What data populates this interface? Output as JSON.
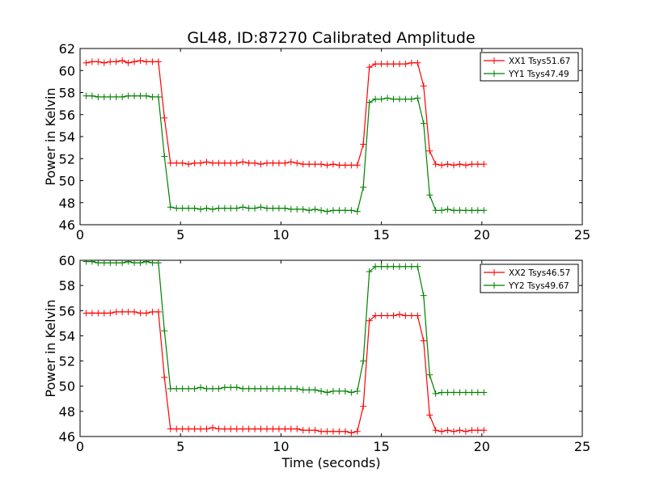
{
  "chart_data": [
    {
      "type": "line",
      "title": "GL48, ID:87270 Calibrated Amplitude",
      "xlabel": "",
      "ylabel": "Power in Kelvin",
      "xlim": [
        0,
        25
      ],
      "ylim": [
        46,
        62
      ],
      "xticks": [
        "0",
        "5",
        "10",
        "15",
        "20",
        "25"
      ],
      "yticks": [
        "46",
        "48",
        "50",
        "52",
        "54",
        "56",
        "58",
        "60",
        "62"
      ],
      "legend_position": "top-right",
      "grid": false,
      "series": [
        {
          "name": "XX1 Tsys51.67",
          "color": "#ff0000",
          "x": [
            0.3,
            0.6,
            0.9,
            1.2,
            1.5,
            1.8,
            2.1,
            2.4,
            2.7,
            3.0,
            3.3,
            3.6,
            3.9,
            4.2,
            4.5,
            4.8,
            5.1,
            5.4,
            5.7,
            6.0,
            6.3,
            6.6,
            6.9,
            7.2,
            7.5,
            7.8,
            8.1,
            8.4,
            8.7,
            9.0,
            9.3,
            9.6,
            9.9,
            10.2,
            10.5,
            10.8,
            11.1,
            11.4,
            11.7,
            12.0,
            12.3,
            12.6,
            12.9,
            13.2,
            13.5,
            13.8,
            14.1,
            14.4,
            14.7,
            15.0,
            15.3,
            15.6,
            15.9,
            16.2,
            16.5,
            16.8,
            17.1,
            17.4,
            17.7,
            18.0,
            18.3,
            18.6,
            18.9,
            19.2,
            19.5,
            19.8,
            20.1
          ],
          "y": [
            60.7,
            60.8,
            60.8,
            60.7,
            60.8,
            60.8,
            60.9,
            60.7,
            60.8,
            60.9,
            60.8,
            60.8,
            60.8,
            55.7,
            51.6,
            51.6,
            51.6,
            51.5,
            51.6,
            51.6,
            51.7,
            51.6,
            51.6,
            51.6,
            51.6,
            51.6,
            51.7,
            51.6,
            51.6,
            51.5,
            51.6,
            51.6,
            51.6,
            51.6,
            51.7,
            51.6,
            51.5,
            51.5,
            51.5,
            51.5,
            51.4,
            51.5,
            51.4,
            51.4,
            51.4,
            51.4,
            53.3,
            60.3,
            60.6,
            60.6,
            60.6,
            60.6,
            60.6,
            60.6,
            60.7,
            60.7,
            58.6,
            52.7,
            51.5,
            51.4,
            51.5,
            51.4,
            51.5,
            51.4,
            51.5,
            51.5,
            51.5
          ]
        },
        {
          "name": "YY1 Tsys47.49",
          "color": "#008000",
          "x": [
            0.3,
            0.6,
            0.9,
            1.2,
            1.5,
            1.8,
            2.1,
            2.4,
            2.7,
            3.0,
            3.3,
            3.6,
            3.9,
            4.2,
            4.5,
            4.8,
            5.1,
            5.4,
            5.7,
            6.0,
            6.3,
            6.6,
            6.9,
            7.2,
            7.5,
            7.8,
            8.1,
            8.4,
            8.7,
            9.0,
            9.3,
            9.6,
            9.9,
            10.2,
            10.5,
            10.8,
            11.1,
            11.4,
            11.7,
            12.0,
            12.3,
            12.6,
            12.9,
            13.2,
            13.5,
            13.8,
            14.1,
            14.4,
            14.7,
            15.0,
            15.3,
            15.6,
            15.9,
            16.2,
            16.5,
            16.8,
            17.1,
            17.4,
            17.7,
            18.0,
            18.3,
            18.6,
            18.9,
            19.2,
            19.5,
            19.8,
            20.1
          ],
          "y": [
            57.7,
            57.7,
            57.6,
            57.6,
            57.6,
            57.6,
            57.6,
            57.7,
            57.7,
            57.7,
            57.7,
            57.6,
            57.6,
            52.2,
            47.6,
            47.5,
            47.5,
            47.5,
            47.5,
            47.4,
            47.5,
            47.4,
            47.5,
            47.5,
            47.5,
            47.5,
            47.6,
            47.5,
            47.5,
            47.6,
            47.5,
            47.5,
            47.5,
            47.5,
            47.4,
            47.4,
            47.4,
            47.3,
            47.4,
            47.3,
            47.2,
            47.3,
            47.3,
            47.3,
            47.3,
            47.2,
            49.4,
            57.1,
            57.4,
            57.4,
            57.5,
            57.4,
            57.4,
            57.4,
            57.4,
            57.5,
            55.2,
            48.7,
            47.3,
            47.3,
            47.4,
            47.3,
            47.3,
            47.3,
            47.3,
            47.3,
            47.3
          ]
        }
      ]
    },
    {
      "type": "line",
      "title": "",
      "xlabel": "Time (seconds)",
      "ylabel": "Power in Kelvin",
      "xlim": [
        0,
        25
      ],
      "ylim": [
        46,
        60
      ],
      "xticks": [
        "0",
        "5",
        "10",
        "15",
        "20",
        "25"
      ],
      "yticks": [
        "46",
        "48",
        "50",
        "52",
        "54",
        "56",
        "58",
        "60"
      ],
      "legend_position": "top-right",
      "grid": false,
      "series": [
        {
          "name": "XX2 Tsys46.57",
          "color": "#ff0000",
          "x": [
            0.3,
            0.6,
            0.9,
            1.2,
            1.5,
            1.8,
            2.1,
            2.4,
            2.7,
            3.0,
            3.3,
            3.6,
            3.9,
            4.2,
            4.5,
            4.8,
            5.1,
            5.4,
            5.7,
            6.0,
            6.3,
            6.6,
            6.9,
            7.2,
            7.5,
            7.8,
            8.1,
            8.4,
            8.7,
            9.0,
            9.3,
            9.6,
            9.9,
            10.2,
            10.5,
            10.8,
            11.1,
            11.4,
            11.7,
            12.0,
            12.3,
            12.6,
            12.9,
            13.2,
            13.5,
            13.8,
            14.1,
            14.4,
            14.7,
            15.0,
            15.3,
            15.6,
            15.9,
            16.2,
            16.5,
            16.8,
            17.1,
            17.4,
            17.7,
            18.0,
            18.3,
            18.6,
            18.9,
            19.2,
            19.5,
            19.8,
            20.1
          ],
          "y": [
            55.8,
            55.8,
            55.8,
            55.8,
            55.8,
            55.9,
            55.9,
            55.9,
            55.9,
            55.8,
            55.8,
            55.9,
            55.9,
            50.7,
            46.6,
            46.6,
            46.6,
            46.6,
            46.6,
            46.6,
            46.6,
            46.7,
            46.6,
            46.6,
            46.6,
            46.6,
            46.6,
            46.6,
            46.6,
            46.6,
            46.6,
            46.6,
            46.6,
            46.6,
            46.6,
            46.6,
            46.5,
            46.5,
            46.5,
            46.4,
            46.4,
            46.4,
            46.4,
            46.4,
            46.3,
            46.4,
            48.4,
            55.2,
            55.6,
            55.6,
            55.6,
            55.6,
            55.7,
            55.6,
            55.6,
            55.6,
            53.6,
            47.7,
            46.5,
            46.4,
            46.5,
            46.4,
            46.5,
            46.4,
            46.5,
            46.5,
            46.5
          ]
        },
        {
          "name": "YY2 Tsys49.67",
          "color": "#008000",
          "x": [
            0.3,
            0.6,
            0.9,
            1.2,
            1.5,
            1.8,
            2.1,
            2.4,
            2.7,
            3.0,
            3.3,
            3.6,
            3.9,
            4.2,
            4.5,
            4.8,
            5.1,
            5.4,
            5.7,
            6.0,
            6.3,
            6.6,
            6.9,
            7.2,
            7.5,
            7.8,
            8.1,
            8.4,
            8.7,
            9.0,
            9.3,
            9.6,
            9.9,
            10.2,
            10.5,
            10.8,
            11.1,
            11.4,
            11.7,
            12.0,
            12.3,
            12.6,
            12.9,
            13.2,
            13.5,
            13.8,
            14.1,
            14.4,
            14.7,
            15.0,
            15.3,
            15.6,
            15.9,
            16.2,
            16.5,
            16.8,
            17.1,
            17.4,
            17.7,
            18.0,
            18.3,
            18.6,
            18.9,
            19.2,
            19.5,
            19.8,
            20.1
          ],
          "y": [
            59.9,
            59.9,
            59.8,
            59.8,
            59.8,
            59.8,
            59.8,
            59.9,
            59.8,
            59.8,
            59.9,
            59.8,
            59.8,
            54.4,
            49.8,
            49.8,
            49.8,
            49.8,
            49.8,
            49.9,
            49.8,
            49.8,
            49.8,
            49.9,
            49.9,
            49.9,
            49.8,
            49.8,
            49.8,
            49.8,
            49.8,
            49.8,
            49.8,
            49.8,
            49.8,
            49.8,
            49.7,
            49.7,
            49.7,
            49.6,
            49.5,
            49.6,
            49.6,
            49.6,
            49.5,
            49.6,
            52.0,
            59.1,
            59.5,
            59.5,
            59.5,
            59.5,
            59.5,
            59.5,
            59.5,
            59.5,
            57.2,
            50.9,
            49.4,
            49.5,
            49.5,
            49.5,
            49.5,
            49.5,
            49.5,
            49.5,
            49.5
          ]
        }
      ]
    }
  ]
}
